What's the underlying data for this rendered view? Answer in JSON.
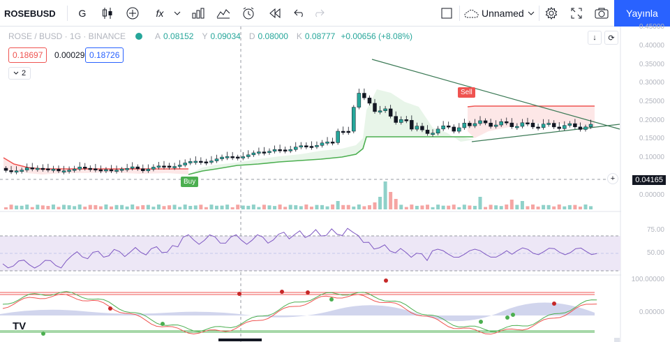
{
  "toolbar": {
    "symbol": "ROSEBUSD",
    "interval": "G",
    "fx_label": "fx",
    "layout_name": "Unnamed",
    "publish_label": "Yayınla"
  },
  "legend": {
    "title": "ROSE / BUSD · 1G · BINANCE",
    "open_label": "A",
    "open": "0.08152",
    "high_label": "Y",
    "high": "0.09034",
    "low_label": "D",
    "low": "0.08000",
    "close_label": "K",
    "close": "0.08777",
    "change": "+0.00656 (+8.08%)",
    "sell_price": "0.18697",
    "spread": "0.00029",
    "buy_price": "0.18726",
    "indicators_count": "2"
  },
  "markers": {
    "buy": "Buy",
    "sell": "Sell"
  },
  "price_axis": {
    "ticks": [
      "0.45000",
      "0.40000",
      "0.35000",
      "0.30000",
      "0.25000",
      "0.20000",
      "0.15000",
      "0.10000"
    ],
    "volume_tag": "0.04165",
    "volume_zero": "0.00000",
    "rsi_ticks": [
      "75.00",
      "50.00"
    ],
    "stoch_ticks": [
      "100.00000",
      "0.00000"
    ]
  },
  "colors": {
    "up": "#26a69a",
    "down": "#ef5350",
    "accent": "#2962ff",
    "rsi": "#7e57c2",
    "buyfill": "#e8f5e9",
    "sellfill": "#fde7e7"
  }
}
